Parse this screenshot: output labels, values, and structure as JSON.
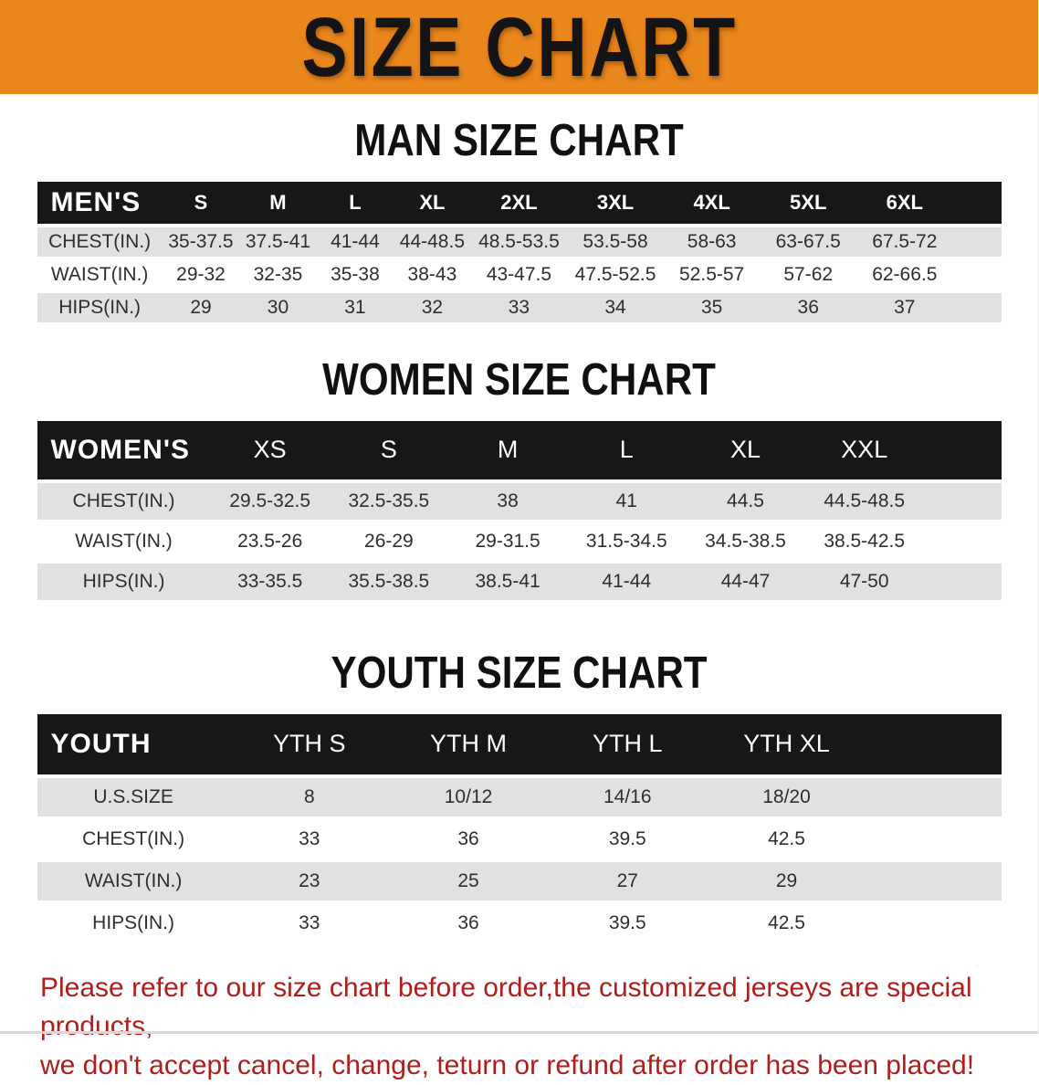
{
  "banner": {
    "title": "SIZE CHART"
  },
  "sections": [
    {
      "heading": "MAN SIZE CHART",
      "table": {
        "corner": "MEN'S",
        "columns": [
          "S",
          "M",
          "L",
          "XL",
          "2XL",
          "3XL",
          "4XL",
          "5XL",
          "6XL"
        ],
        "rows": [
          {
            "label": "CHEST(IN.)",
            "values": [
              "35-37.5",
              "37.5-41",
              "41-44",
              "44-48.5",
              "48.5-53.5",
              "53.5-58",
              "58-63",
              "63-67.5",
              "67.5-72"
            ]
          },
          {
            "label": "WAIST(IN.)",
            "values": [
              "29-32",
              "32-35",
              "35-38",
              "38-43",
              "43-47.5",
              "47.5-52.5",
              "52.5-57",
              "57-62",
              "62-66.5"
            ]
          },
          {
            "label": "HIPS(IN.)",
            "values": [
              "29",
              "30",
              "31",
              "32",
              "33",
              "34",
              "35",
              "36",
              "37"
            ]
          }
        ]
      }
    },
    {
      "heading": "WOMEN SIZE CHART",
      "table": {
        "corner": "WOMEN'S",
        "columns": [
          "XS",
          "S",
          "M",
          "L",
          "XL",
          "XXL"
        ],
        "rows": [
          {
            "label": "CHEST(IN.)",
            "values": [
              "29.5-32.5",
              "32.5-35.5",
              "38",
              "41",
              "44.5",
              "44.5-48.5"
            ]
          },
          {
            "label": "WAIST(IN.)",
            "values": [
              "23.5-26",
              "26-29",
              "29-31.5",
              "31.5-34.5",
              "34.5-38.5",
              "38.5-42.5"
            ]
          },
          {
            "label": "HIPS(IN.)",
            "values": [
              "33-35.5",
              "35.5-38.5",
              "38.5-41",
              "41-44",
              "44-47",
              "47-50"
            ]
          }
        ]
      }
    },
    {
      "heading": "YOUTH SIZE CHART",
      "table": {
        "corner": "YOUTH",
        "columns": [
          "YTH S",
          "YTH M",
          "YTH L",
          "YTH XL"
        ],
        "rows": [
          {
            "label": "U.S.SIZE",
            "values": [
              "8",
              "10/12",
              "14/16",
              "18/20"
            ]
          },
          {
            "label": "CHEST(IN.)",
            "values": [
              "33",
              "36",
              "39.5",
              "42.5"
            ]
          },
          {
            "label": "WAIST(IN.)",
            "values": [
              "23",
              "25",
              "27",
              "29"
            ]
          },
          {
            "label": "HIPS(IN.)",
            "values": [
              "33",
              "36",
              "39.5",
              "42.5"
            ]
          }
        ]
      }
    }
  ],
  "footer": {
    "line1": "Please refer to our size chart before order,the customized jerseys are special products,",
    "line2": "we don't accept cancel, change, teturn or refund after order has been placed!"
  },
  "colors": {
    "banner_bg": "#e9861c",
    "header_bg": "#171717",
    "row_stripe": "#e1e1e1",
    "disclaimer_red": "#b01e1c"
  }
}
